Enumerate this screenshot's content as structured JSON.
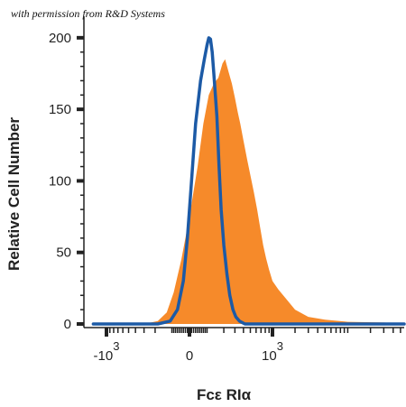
{
  "credit": "with permission from R&D Systems",
  "chart_data": {
    "type": "area",
    "xlabel": "Fcε RIα",
    "ylabel": "Relative Cell Number",
    "x_scale": "biexponential",
    "ylim": [
      0,
      210
    ],
    "y_ticks": [
      0,
      50,
      100,
      150,
      200
    ],
    "y_tick_labels": [
      "0",
      "50",
      "100",
      "150",
      "200"
    ],
    "x_ticks": [
      {
        "base": "-10",
        "exp": "3"
      },
      {
        "base": "0",
        "exp": ""
      },
      {
        "base": "10",
        "exp": "3"
      }
    ],
    "series": [
      {
        "kind": "filled",
        "color": "#f68a2a",
        "points": [
          [
            -1500,
            0
          ],
          [
            -300,
            0
          ],
          [
            -180,
            2
          ],
          [
            -120,
            8
          ],
          [
            -80,
            22
          ],
          [
            -40,
            45
          ],
          [
            0,
            75
          ],
          [
            40,
            110
          ],
          [
            70,
            140
          ],
          [
            100,
            160
          ],
          [
            130,
            168
          ],
          [
            160,
            172
          ],
          [
            190,
            182
          ],
          [
            210,
            185
          ],
          [
            240,
            176
          ],
          [
            270,
            168
          ],
          [
            300,
            158
          ],
          [
            330,
            148
          ],
          [
            360,
            140
          ],
          [
            400,
            128
          ],
          [
            450,
            115
          ],
          [
            500,
            104
          ],
          [
            560,
            92
          ],
          [
            620,
            80
          ],
          [
            680,
            68
          ],
          [
            750,
            55
          ],
          [
            820,
            46
          ],
          [
            900,
            38
          ],
          [
            1000,
            30
          ],
          [
            1200,
            24
          ],
          [
            1500,
            18
          ],
          [
            2000,
            10
          ],
          [
            3000,
            5
          ],
          [
            5000,
            3
          ],
          [
            10000,
            1.5
          ],
          [
            30000,
            1
          ],
          [
            80000,
            0.5
          ],
          [
            150000,
            0.5
          ],
          [
            220000,
            4
          ],
          [
            250000,
            10
          ],
          [
            262000,
            4
          ],
          [
            262000,
            0
          ]
        ]
      },
      {
        "kind": "line",
        "color": "#1c5aa6",
        "points": [
          [
            -1500,
            0
          ],
          [
            -180,
            0
          ],
          [
            -100,
            2
          ],
          [
            -60,
            10
          ],
          [
            -30,
            30
          ],
          [
            -10,
            60
          ],
          [
            10,
            100
          ],
          [
            30,
            140
          ],
          [
            55,
            170
          ],
          [
            75,
            185
          ],
          [
            90,
            195
          ],
          [
            100,
            200
          ],
          [
            110,
            199
          ],
          [
            120,
            190
          ],
          [
            130,
            175
          ],
          [
            150,
            145
          ],
          [
            165,
            110
          ],
          [
            180,
            80
          ],
          [
            200,
            55
          ],
          [
            225,
            35
          ],
          [
            250,
            20
          ],
          [
            280,
            10
          ],
          [
            310,
            5
          ],
          [
            350,
            2
          ],
          [
            420,
            0
          ],
          [
            262000,
            0
          ]
        ]
      }
    ]
  }
}
